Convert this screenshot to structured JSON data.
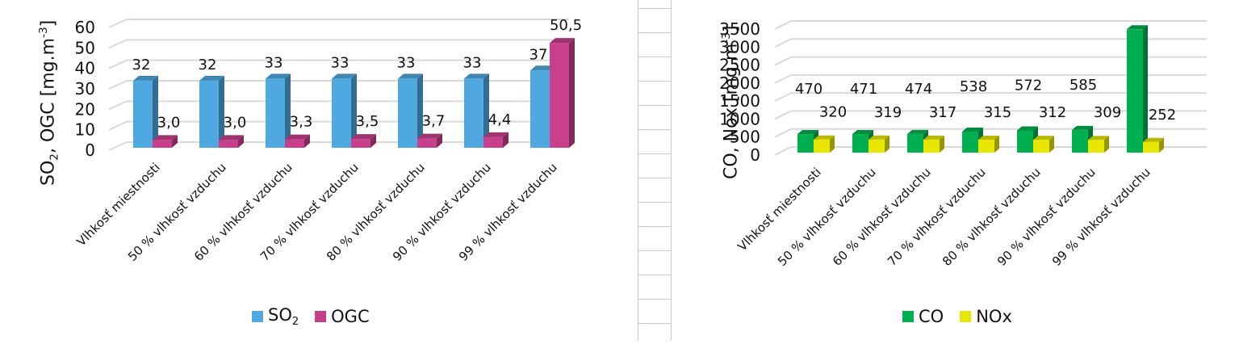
{
  "chart_data": [
    {
      "type": "bar",
      "style": "3d-clustered-column",
      "title": "",
      "xlabel": "",
      "ylabel": "SO2, OGC [mg.m-3]",
      "ylim": [
        0,
        60
      ],
      "yticks": [
        0,
        10,
        20,
        30,
        40,
        50,
        60
      ],
      "grid": true,
      "legend_position": "bottom",
      "categories": [
        "Vlhkosť miestnosti",
        "50 % vlhkosť vzduchu",
        "60 % vlhkosť vzduchu",
        "70 % vlhkosť vzduchu",
        "80 % vlhkosť vzduchu",
        "90 % vlhkosť vzduchu",
        "99 % vlhkosť vzduchu"
      ],
      "series": [
        {
          "name": "SO2",
          "color": "#4FA8E0",
          "values": [
            32,
            32,
            33,
            33,
            33,
            33,
            37
          ],
          "labels": [
            "32",
            "32",
            "33",
            "33",
            "33",
            "33",
            "37"
          ]
        },
        {
          "name": "OGC",
          "color": "#C8408C",
          "values": [
            3.0,
            3.0,
            3.3,
            3.5,
            3.7,
            4.4,
            50.5
          ],
          "labels": [
            "3,0",
            "3,0",
            "3,3",
            "3,5",
            "3,7",
            "4,4",
            "50,5"
          ]
        }
      ]
    },
    {
      "type": "bar",
      "style": "3d-clustered-column",
      "title": "",
      "xlabel": "",
      "ylabel": "CO, Nox [mg.m-3]",
      "ylim": [
        0,
        3500
      ],
      "yticks": [
        0,
        500,
        1000,
        1500,
        2000,
        2500,
        3000,
        3500
      ],
      "grid": true,
      "legend_position": "bottom",
      "categories": [
        "Vlhkosť miestnosti",
        "50 % vlhkosť vzduchu",
        "60 % vlhkosť vzduchu",
        "70 % vlhkosť vzduchu",
        "80 % vlhkosť vzduchu",
        "90 % vlhkosť vzduchu",
        "99 % vlhkosť vzduchu"
      ],
      "series": [
        {
          "name": "CO",
          "color": "#00B050",
          "values": [
            470,
            471,
            474,
            538,
            572,
            585,
            3381
          ],
          "labels": [
            "470",
            "471",
            "474",
            "538",
            "572",
            "585",
            "3381"
          ]
        },
        {
          "name": "NOx",
          "color": "#E6E600",
          "values": [
            320,
            319,
            317,
            315,
            312,
            309,
            252
          ],
          "labels": [
            "320",
            "319",
            "317",
            "315",
            "312",
            "309",
            "252"
          ]
        }
      ]
    }
  ],
  "left": {
    "ylabel_main": "SO",
    "ylabel_sub": "2",
    "ylabel_rest": ", OGC [mg.m",
    "ylabel_sup": "-3",
    "ylabel_end": "]",
    "legend": [
      {
        "label": "SO",
        "sub": "2",
        "color": "#4FA8E0"
      },
      {
        "label": "OGC",
        "sub": "",
        "color": "#C8408C"
      }
    ]
  },
  "right": {
    "ylabel_main": "CO, Nox [mg.m",
    "ylabel_sup": "-3",
    "ylabel_end": "]",
    "legend": [
      {
        "label": "CO",
        "color": "#00B050"
      },
      {
        "label": "NOx",
        "color": "#E6E600"
      }
    ]
  }
}
